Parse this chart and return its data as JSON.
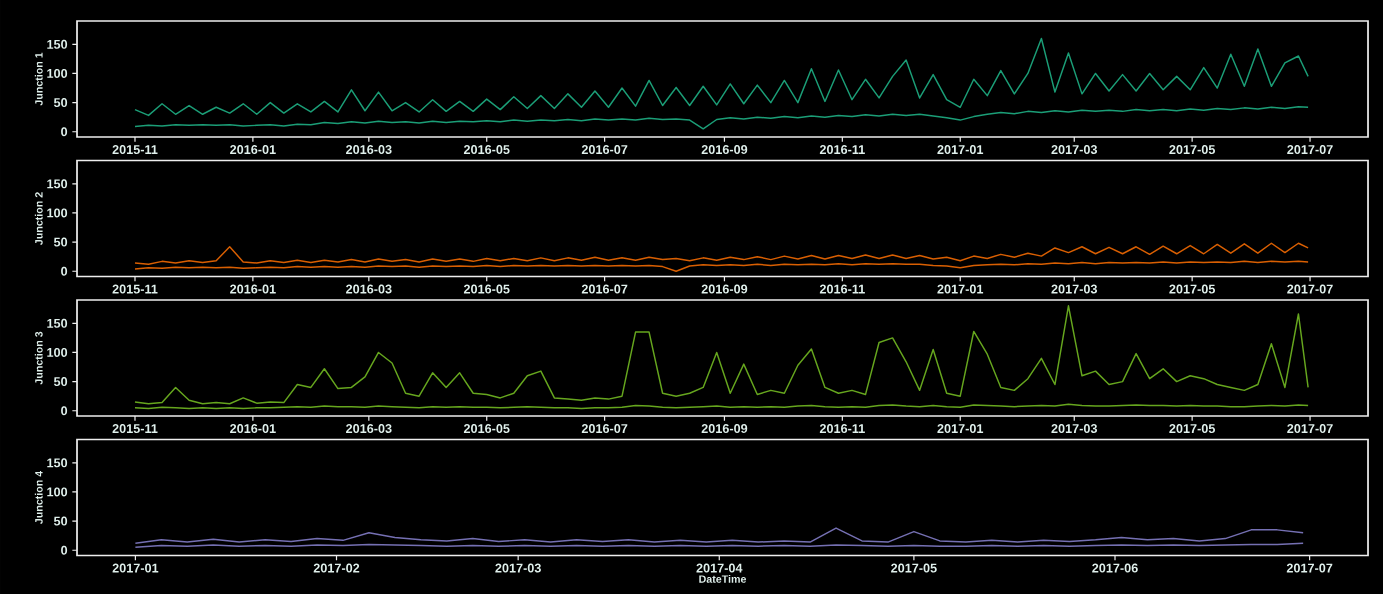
{
  "chart_data": [
    {
      "type": "line",
      "ylabel": "Junction 1",
      "x": [
        "2015-11-01",
        "2015-11-08",
        "2015-11-15",
        "2015-11-22",
        "2015-11-29",
        "2015-12-06",
        "2015-12-13",
        "2015-12-20",
        "2015-12-27",
        "2016-01-03",
        "2016-01-10",
        "2016-01-17",
        "2016-01-24",
        "2016-01-31",
        "2016-02-07",
        "2016-02-14",
        "2016-02-21",
        "2016-02-28",
        "2016-03-06",
        "2016-03-13",
        "2016-03-20",
        "2016-03-27",
        "2016-04-03",
        "2016-04-10",
        "2016-04-17",
        "2016-04-24",
        "2016-05-01",
        "2016-05-08",
        "2016-05-15",
        "2016-05-22",
        "2016-05-29",
        "2016-06-05",
        "2016-06-12",
        "2016-06-19",
        "2016-06-26",
        "2016-07-03",
        "2016-07-10",
        "2016-07-17",
        "2016-07-24",
        "2016-07-31",
        "2016-08-07",
        "2016-08-14",
        "2016-08-21",
        "2016-08-28",
        "2016-09-04",
        "2016-09-11",
        "2016-09-18",
        "2016-09-25",
        "2016-10-02",
        "2016-10-09",
        "2016-10-16",
        "2016-10-23",
        "2016-10-30",
        "2016-11-06",
        "2016-11-13",
        "2016-11-20",
        "2016-11-27",
        "2016-12-04",
        "2016-12-11",
        "2016-12-18",
        "2016-12-25",
        "2017-01-01",
        "2017-01-08",
        "2017-01-15",
        "2017-01-22",
        "2017-01-29",
        "2017-02-05",
        "2017-02-12",
        "2017-02-19",
        "2017-02-26",
        "2017-03-05",
        "2017-03-12",
        "2017-03-19",
        "2017-03-26",
        "2017-04-02",
        "2017-04-09",
        "2017-04-16",
        "2017-04-23",
        "2017-04-30",
        "2017-05-07",
        "2017-05-14",
        "2017-05-21",
        "2017-05-28",
        "2017-06-04",
        "2017-06-11",
        "2017-06-18",
        "2017-06-25",
        "2017-06-30"
      ],
      "xlim": [
        "2015-10-02",
        "2017-07-31"
      ],
      "xticks": [
        "2015-11",
        "2016-01",
        "2016-03",
        "2016-05",
        "2016-07",
        "2016-09",
        "2016-11",
        "2017-01",
        "2017-03",
        "2017-05",
        "2017-07"
      ],
      "ylim": [
        -9,
        190
      ],
      "yticks": [
        0,
        50,
        100,
        150
      ],
      "series": [
        {
          "color": "#1b9e77",
          "values": [
            38,
            28,
            48,
            30,
            45,
            30,
            42,
            32,
            48,
            30,
            50,
            32,
            48,
            34,
            52,
            34,
            72,
            36,
            68,
            36,
            50,
            34,
            55,
            35,
            52,
            35,
            56,
            38,
            60,
            40,
            62,
            40,
            65,
            42,
            70,
            42,
            75,
            44,
            88,
            45,
            76,
            45,
            78,
            46,
            82,
            48,
            80,
            50,
            88,
            50,
            108,
            52,
            106,
            55,
            90,
            58,
            95,
            123,
            58,
            98,
            55,
            42,
            90,
            62,
            105,
            65,
            100,
            160,
            68,
            135,
            65,
            100,
            70,
            98,
            70,
            100,
            72,
            95,
            72,
            110,
            75,
            133,
            78,
            142,
            78,
            118,
            130,
            95
          ]
        },
        {
          "color": "#1b9e77",
          "values": [
            9,
            11,
            10,
            12,
            11,
            12,
            11,
            12,
            10,
            11,
            12,
            10,
            13,
            12,
            16,
            14,
            17,
            15,
            18,
            16,
            17,
            15,
            18,
            16,
            18,
            17,
            19,
            17,
            20,
            18,
            20,
            19,
            21,
            19,
            22,
            20,
            22,
            20,
            23,
            21,
            22,
            20,
            5,
            21,
            24,
            22,
            25,
            23,
            26,
            24,
            27,
            25,
            28,
            26,
            29,
            27,
            30,
            28,
            30,
            27,
            24,
            20,
            26,
            30,
            33,
            31,
            35,
            33,
            36,
            34,
            37,
            35,
            37,
            35,
            38,
            36,
            38,
            36,
            39,
            37,
            40,
            38,
            41,
            39,
            42,
            40,
            43,
            42
          ]
        }
      ]
    },
    {
      "type": "line",
      "ylabel": "Junction 2",
      "x": [
        "2015-11-01",
        "2015-11-08",
        "2015-11-15",
        "2015-11-22",
        "2015-11-29",
        "2015-12-06",
        "2015-12-13",
        "2015-12-20",
        "2015-12-27",
        "2016-01-03",
        "2016-01-10",
        "2016-01-17",
        "2016-01-24",
        "2016-01-31",
        "2016-02-07",
        "2016-02-14",
        "2016-02-21",
        "2016-02-28",
        "2016-03-06",
        "2016-03-13",
        "2016-03-20",
        "2016-03-27",
        "2016-04-03",
        "2016-04-10",
        "2016-04-17",
        "2016-04-24",
        "2016-05-01",
        "2016-05-08",
        "2016-05-15",
        "2016-05-22",
        "2016-05-29",
        "2016-06-05",
        "2016-06-12",
        "2016-06-19",
        "2016-06-26",
        "2016-07-03",
        "2016-07-10",
        "2016-07-17",
        "2016-07-24",
        "2016-07-31",
        "2016-08-07",
        "2016-08-14",
        "2016-08-21",
        "2016-08-28",
        "2016-09-04",
        "2016-09-11",
        "2016-09-18",
        "2016-09-25",
        "2016-10-02",
        "2016-10-09",
        "2016-10-16",
        "2016-10-23",
        "2016-10-30",
        "2016-11-06",
        "2016-11-13",
        "2016-11-20",
        "2016-11-27",
        "2016-12-04",
        "2016-12-11",
        "2016-12-18",
        "2016-12-25",
        "2017-01-01",
        "2017-01-08",
        "2017-01-15",
        "2017-01-22",
        "2017-01-29",
        "2017-02-05",
        "2017-02-12",
        "2017-02-19",
        "2017-02-26",
        "2017-03-05",
        "2017-03-12",
        "2017-03-19",
        "2017-03-26",
        "2017-04-02",
        "2017-04-09",
        "2017-04-16",
        "2017-04-23",
        "2017-04-30",
        "2017-05-07",
        "2017-05-14",
        "2017-05-21",
        "2017-05-28",
        "2017-06-04",
        "2017-06-11",
        "2017-06-18",
        "2017-06-25",
        "2017-06-30"
      ],
      "xlim": [
        "2015-10-02",
        "2017-07-31"
      ],
      "xticks": [
        "2015-11",
        "2016-01",
        "2016-03",
        "2016-05",
        "2016-07",
        "2016-09",
        "2016-11",
        "2017-01",
        "2017-03",
        "2017-05",
        "2017-07"
      ],
      "ylim": [
        -9,
        190
      ],
      "yticks": [
        0,
        50,
        100,
        150
      ],
      "series": [
        {
          "color": "#d95f02",
          "values": [
            14,
            12,
            17,
            14,
            18,
            15,
            18,
            42,
            16,
            14,
            18,
            15,
            19,
            15,
            19,
            16,
            20,
            16,
            21,
            17,
            20,
            16,
            21,
            17,
            21,
            17,
            22,
            18,
            22,
            18,
            23,
            18,
            23,
            19,
            24,
            19,
            23,
            19,
            24,
            20,
            22,
            18,
            23,
            19,
            24,
            20,
            25,
            20,
            26,
            21,
            27,
            21,
            27,
            22,
            28,
            22,
            28,
            22,
            27,
            21,
            24,
            18,
            26,
            22,
            29,
            24,
            31,
            26,
            40,
            32,
            42,
            30,
            41,
            30,
            42,
            29,
            43,
            30,
            44,
            30,
            46,
            31,
            47,
            31,
            48,
            32,
            48,
            40
          ]
        },
        {
          "color": "#d95f02",
          "values": [
            4,
            6,
            5,
            7,
            6,
            7,
            6,
            7,
            5,
            6,
            7,
            6,
            8,
            7,
            8,
            7,
            8,
            7,
            9,
            8,
            9,
            7,
            9,
            8,
            9,
            8,
            10,
            8,
            10,
            9,
            10,
            9,
            10,
            9,
            10,
            9,
            10,
            9,
            10,
            8,
            0,
            9,
            11,
            10,
            11,
            10,
            12,
            10,
            12,
            11,
            12,
            11,
            13,
            11,
            13,
            12,
            13,
            12,
            12,
            10,
            9,
            6,
            10,
            11,
            12,
            11,
            13,
            12,
            14,
            13,
            15,
            13,
            15,
            14,
            15,
            14,
            16,
            14,
            16,
            15,
            16,
            15,
            17,
            15,
            17,
            16,
            17,
            16
          ]
        }
      ]
    },
    {
      "type": "line",
      "ylabel": "Junction 3",
      "x": [
        "2015-11-01",
        "2015-11-08",
        "2015-11-15",
        "2015-11-22",
        "2015-11-29",
        "2015-12-06",
        "2015-12-13",
        "2015-12-20",
        "2015-12-27",
        "2016-01-03",
        "2016-01-10",
        "2016-01-17",
        "2016-01-24",
        "2016-01-31",
        "2016-02-07",
        "2016-02-14",
        "2016-02-21",
        "2016-02-28",
        "2016-03-06",
        "2016-03-13",
        "2016-03-20",
        "2016-03-27",
        "2016-04-03",
        "2016-04-10",
        "2016-04-17",
        "2016-04-24",
        "2016-05-01",
        "2016-05-08",
        "2016-05-15",
        "2016-05-22",
        "2016-05-29",
        "2016-06-05",
        "2016-06-12",
        "2016-06-19",
        "2016-06-26",
        "2016-07-03",
        "2016-07-10",
        "2016-07-17",
        "2016-07-24",
        "2016-07-31",
        "2016-08-07",
        "2016-08-14",
        "2016-08-21",
        "2016-08-28",
        "2016-09-04",
        "2016-09-11",
        "2016-09-18",
        "2016-09-25",
        "2016-10-02",
        "2016-10-09",
        "2016-10-16",
        "2016-10-23",
        "2016-10-30",
        "2016-11-06",
        "2016-11-13",
        "2016-11-20",
        "2016-11-27",
        "2016-12-04",
        "2016-12-11",
        "2016-12-18",
        "2016-12-25",
        "2017-01-01",
        "2017-01-08",
        "2017-01-15",
        "2017-01-22",
        "2017-01-29",
        "2017-02-05",
        "2017-02-12",
        "2017-02-19",
        "2017-02-26",
        "2017-03-05",
        "2017-03-12",
        "2017-03-19",
        "2017-03-26",
        "2017-04-02",
        "2017-04-09",
        "2017-04-16",
        "2017-04-23",
        "2017-04-30",
        "2017-05-07",
        "2017-05-14",
        "2017-05-21",
        "2017-05-28",
        "2017-06-04",
        "2017-06-11",
        "2017-06-18",
        "2017-06-25",
        "2017-06-30"
      ],
      "xlim": [
        "2015-10-02",
        "2017-07-31"
      ],
      "xticks": [
        "2015-11",
        "2016-01",
        "2016-03",
        "2016-05",
        "2016-07",
        "2016-09",
        "2016-11",
        "2017-01",
        "2017-03",
        "2017-05",
        "2017-07"
      ],
      "ylim": [
        -9,
        190
      ],
      "yticks": [
        0,
        50,
        100,
        150
      ],
      "series": [
        {
          "color": "#66a61e",
          "values": [
            15,
            12,
            14,
            40,
            18,
            12,
            14,
            12,
            22,
            13,
            15,
            14,
            45,
            40,
            72,
            38,
            40,
            58,
            100,
            82,
            30,
            25,
            65,
            40,
            65,
            30,
            28,
            22,
            30,
            60,
            68,
            22,
            20,
            18,
            22,
            20,
            25,
            135,
            135,
            30,
            25,
            30,
            40,
            100,
            30,
            80,
            28,
            35,
            30,
            78,
            106,
            40,
            30,
            35,
            28,
            117,
            125,
            84,
            35,
            105,
            30,
            25,
            136,
            97,
            40,
            35,
            55,
            90,
            45,
            180,
            60,
            68,
            45,
            50,
            98,
            55,
            72,
            50,
            60,
            55,
            45,
            40,
            35,
            45,
            115,
            40,
            166,
            40
          ]
        },
        {
          "color": "#66a61e",
          "values": [
            5,
            4,
            6,
            5,
            4,
            5,
            4,
            5,
            4,
            5,
            5,
            6,
            7,
            6,
            8,
            7,
            7,
            6,
            8,
            7,
            6,
            5,
            7,
            6,
            7,
            6,
            6,
            5,
            6,
            7,
            6,
            5,
            5,
            4,
            5,
            5,
            6,
            9,
            8,
            6,
            5,
            6,
            7,
            8,
            6,
            7,
            6,
            7,
            6,
            8,
            9,
            7,
            6,
            7,
            6,
            9,
            10,
            8,
            7,
            9,
            7,
            6,
            10,
            9,
            8,
            7,
            8,
            9,
            8,
            11,
            9,
            8,
            8,
            9,
            10,
            9,
            9,
            8,
            9,
            8,
            8,
            7,
            7,
            8,
            9,
            8,
            10,
            9
          ]
        }
      ]
    },
    {
      "type": "line",
      "ylabel": "Junction 4",
      "xlabel": "DateTime",
      "x": [
        "2017-01-01",
        "2017-01-05",
        "2017-01-09",
        "2017-01-13",
        "2017-01-17",
        "2017-01-21",
        "2017-01-25",
        "2017-01-29",
        "2017-02-02",
        "2017-02-06",
        "2017-02-10",
        "2017-02-14",
        "2017-02-18",
        "2017-02-22",
        "2017-02-26",
        "2017-03-02",
        "2017-03-06",
        "2017-03-10",
        "2017-03-14",
        "2017-03-18",
        "2017-03-22",
        "2017-03-26",
        "2017-03-30",
        "2017-04-03",
        "2017-04-07",
        "2017-04-11",
        "2017-04-15",
        "2017-04-19",
        "2017-04-23",
        "2017-04-27",
        "2017-05-01",
        "2017-05-05",
        "2017-05-09",
        "2017-05-13",
        "2017-05-17",
        "2017-05-21",
        "2017-05-25",
        "2017-05-29",
        "2017-06-02",
        "2017-06-06",
        "2017-06-10",
        "2017-06-14",
        "2017-06-18",
        "2017-06-22",
        "2017-06-26",
        "2017-06-30"
      ],
      "xlim": [
        "2016-12-23",
        "2017-07-10"
      ],
      "xticks": [
        "2017-01",
        "2017-02",
        "2017-03",
        "2017-04",
        "2017-05",
        "2017-06",
        "2017-07"
      ],
      "ylim": [
        -9,
        190
      ],
      "yticks": [
        0,
        50,
        100,
        150
      ],
      "series": [
        {
          "color": "#7570b3",
          "values": [
            12,
            18,
            14,
            19,
            14,
            18,
            15,
            20,
            17,
            30,
            22,
            18,
            16,
            20,
            15,
            18,
            14,
            18,
            15,
            18,
            14,
            17,
            14,
            17,
            14,
            16,
            14,
            38,
            16,
            14,
            32,
            16,
            14,
            17,
            14,
            17,
            15,
            18,
            22,
            18,
            20,
            16,
            20,
            35,
            35,
            30
          ]
        },
        {
          "color": "#7570b3",
          "values": [
            5,
            8,
            7,
            9,
            7,
            8,
            7,
            9,
            8,
            10,
            9,
            8,
            7,
            8,
            7,
            8,
            7,
            8,
            7,
            8,
            7,
            8,
            7,
            8,
            7,
            8,
            7,
            9,
            8,
            7,
            8,
            7,
            7,
            8,
            7,
            8,
            7,
            8,
            9,
            8,
            9,
            8,
            9,
            10,
            10,
            12
          ]
        }
      ]
    }
  ]
}
